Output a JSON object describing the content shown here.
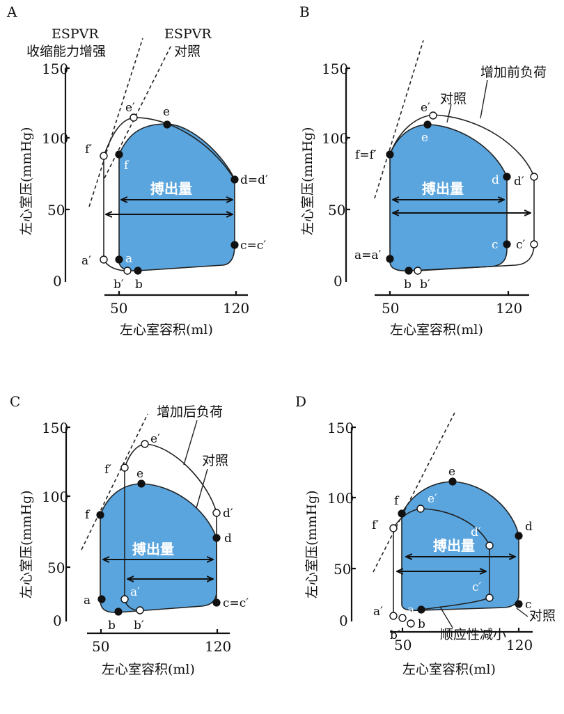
{
  "panels": [
    {
      "letter": "A",
      "ylabel": "左心室压(mmHg)",
      "xlabel": "左心室容积(ml)",
      "yticks": [
        "0",
        "50",
        "100",
        "150"
      ],
      "xticks": [
        "50",
        "120"
      ],
      "stroke_volume_label": "搏出量",
      "annotations": [
        "ESPVR",
        "收缩能力增强",
        "ESPVR",
        "对照"
      ],
      "points": [
        "a′",
        "a",
        "b′",
        "b",
        "c=c′",
        "d=d′",
        "e′",
        "e",
        "f′",
        "f"
      ]
    },
    {
      "letter": "B",
      "ylabel": "左心室压(mmHg)",
      "xlabel": "左心室容积(ml)",
      "yticks": [
        "0",
        "50",
        "100",
        "150"
      ],
      "xticks": [
        "50",
        "120"
      ],
      "stroke_volume_label": "搏出量",
      "annotations": [
        "对照",
        "增加前负荷"
      ],
      "points": [
        "a=a′",
        "b",
        "b′",
        "c",
        "c′",
        "d",
        "d′",
        "e′",
        "e",
        "f=f′"
      ]
    },
    {
      "letter": "C",
      "ylabel": "左心室压(mmHg)",
      "xlabel": "左心室容积(ml)",
      "yticks": [
        "0",
        "50",
        "100",
        "150"
      ],
      "xticks": [
        "50",
        "120"
      ],
      "stroke_volume_label": "搏出量",
      "annotations": [
        "增加后负荷",
        "对照"
      ],
      "points": [
        "a",
        "a′",
        "b",
        "b′",
        "c=c′",
        "d",
        "d′",
        "e′",
        "e",
        "f′",
        "f"
      ]
    },
    {
      "letter": "D",
      "ylabel": "左心室压(mmHg)",
      "xlabel": "左心室容积(ml)",
      "yticks": [
        "0",
        "50",
        "100",
        "150"
      ],
      "xticks": [
        "50",
        "120"
      ],
      "stroke_volume_label": "搏出量",
      "annotations": [
        "对照",
        "顺应性减小"
      ],
      "points": [
        "a′",
        "a",
        "b′",
        "b",
        "c",
        "c′",
        "d",
        "d′",
        "e",
        "e′",
        "f",
        "f′"
      ]
    }
  ],
  "colors": {
    "loop_fill": "#5aa5de",
    "line": "#222222"
  }
}
